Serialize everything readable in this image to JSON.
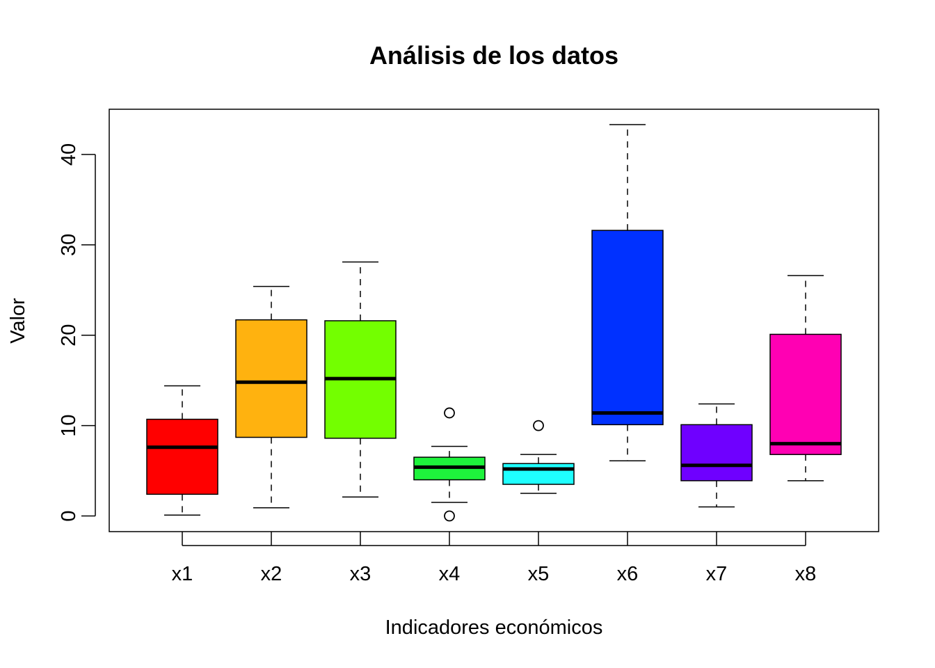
{
  "chart_data": {
    "type": "boxplot",
    "title": "Análisis de los datos",
    "xlabel": "Indicadores económicos",
    "ylabel": "Valor",
    "ylim": [
      -1.7,
      45
    ],
    "y_ticks": [
      0,
      10,
      20,
      30,
      40
    ],
    "grid": false,
    "legend": "none",
    "categories": [
      "x1",
      "x2",
      "x3",
      "x4",
      "x5",
      "x6",
      "x7",
      "x8"
    ],
    "boxes": [
      {
        "name": "x1",
        "color": "#FF0000",
        "whisker_low": 0.1,
        "q1": 2.4,
        "median": 7.6,
        "q3": 10.7,
        "whisker_high": 14.4,
        "outliers": []
      },
      {
        "name": "x2",
        "color": "#FFB20F",
        "whisker_low": 0.9,
        "q1": 8.7,
        "median": 14.8,
        "q3": 21.7,
        "whisker_high": 25.4,
        "outliers": []
      },
      {
        "name": "x3",
        "color": "#73FF00",
        "whisker_low": 2.1,
        "q1": 8.6,
        "median": 15.2,
        "q3": 21.6,
        "whisker_high": 28.1,
        "outliers": []
      },
      {
        "name": "x4",
        "color": "#1EF33C",
        "whisker_low": 1.5,
        "q1": 4.0,
        "median": 5.4,
        "q3": 6.5,
        "whisker_high": 7.7,
        "outliers": [
          0.0,
          11.4
        ]
      },
      {
        "name": "x5",
        "color": "#1FFFFF",
        "whisker_low": 2.5,
        "q1": 3.5,
        "median": 5.2,
        "q3": 5.8,
        "whisker_high": 6.8,
        "outliers": [
          10.0
        ]
      },
      {
        "name": "x6",
        "color": "#0031FF",
        "whisker_low": 6.1,
        "q1": 10.1,
        "median": 11.4,
        "q3": 31.6,
        "whisker_high": 43.3,
        "outliers": []
      },
      {
        "name": "x7",
        "color": "#6F00FF",
        "whisker_low": 1.0,
        "q1": 3.9,
        "median": 5.6,
        "q3": 10.1,
        "whisker_high": 12.4,
        "outliers": []
      },
      {
        "name": "x8",
        "color": "#FF00B3",
        "whisker_low": 3.9,
        "q1": 6.8,
        "median": 8.0,
        "q3": 20.1,
        "whisker_high": 26.6,
        "outliers": []
      }
    ]
  }
}
